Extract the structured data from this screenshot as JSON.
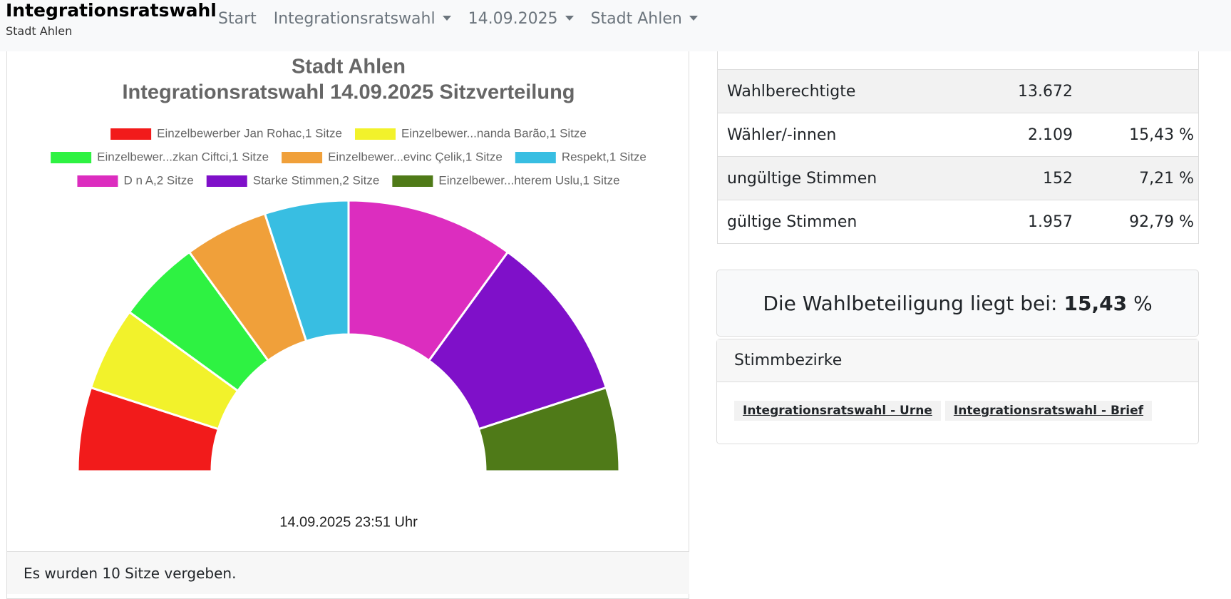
{
  "nav": {
    "brand": "Integrationsratswahl",
    "brand_sub": "Stadt Ahlen",
    "links": [
      "Start",
      "Integrationsratswahl",
      "14.09.2025",
      "Stadt Ahlen"
    ]
  },
  "chart_data": {
    "type": "pie",
    "title": "Stadt Ahlen",
    "subtitle": "Integrationsratswahl 14.09.2025 Sitzverteilung",
    "categories": [
      "Einzelbewerber Jan Rohac,1 Sitze",
      "Einzelbewer...nanda Barão,1 Sitze",
      "Einzelbewer...zkan Ciftci,1 Sitze",
      "Einzelbewer...evinc Çelik,1 Sitze",
      "Respekt,1 Sitze",
      "D n A,2 Sitze",
      "Starke Stimmen,2 Sitze",
      "Einzelbewer...hterem Uslu,1 Sitze"
    ],
    "values": [
      1,
      1,
      1,
      1,
      1,
      2,
      2,
      1
    ],
    "colors": [
      "#f21b1b",
      "#f2f22b",
      "#2ef242",
      "#f0a03a",
      "#38bee2",
      "#dc2dbf",
      "#7f10c9",
      "#4f7a18"
    ],
    "annotation": "14.09.2025 23:51 Uhr"
  },
  "seats_note": "Es wurden 10 Sitze vergeben.",
  "stats": [
    {
      "label": "Wahlberechtigte",
      "count": "13.672"
    },
    {
      "label": "Wähler/-innen",
      "count": "2.109",
      "percent": "15,43 %"
    },
    {
      "label": "ungültige Stimmen",
      "count": "152",
      "percent": "7,21 %"
    },
    {
      "label": "gültige Stimmen",
      "count": "1.957",
      "percent": "92,79 %"
    }
  ],
  "turnout": {
    "text": "Die Wahlbeteiligung liegt bei:",
    "value": "15,43",
    "unit": "%"
  },
  "districts": {
    "header": "Stimmbezirke",
    "links": [
      "Integrationsratswahl - Urne",
      "Integrationsratswahl - Brief"
    ]
  }
}
